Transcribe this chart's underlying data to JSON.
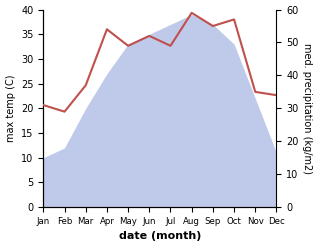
{
  "months": [
    "Jan",
    "Feb",
    "Mar",
    "Apr",
    "May",
    "Jun",
    "Jul",
    "Aug",
    "Sep",
    "Oct",
    "Nov",
    "Dec"
  ],
  "temperature": [
    10,
    12,
    20,
    27,
    33,
    35,
    37,
    39,
    37,
    33,
    22,
    11
  ],
  "precipitation": [
    31,
    29,
    37,
    54,
    49,
    52,
    49,
    59,
    55,
    57,
    35,
    34
  ],
  "temp_color": "#c0504d",
  "precip_fill_color": "#b8c4e8",
  "temp_ylim": [
    0,
    40
  ],
  "precip_ylim": [
    0,
    60
  ],
  "xlabel": "date (month)",
  "ylabel_left": "max temp (C)",
  "ylabel_right": "med. precipitation (kg/m2)",
  "background_color": "#ffffff"
}
